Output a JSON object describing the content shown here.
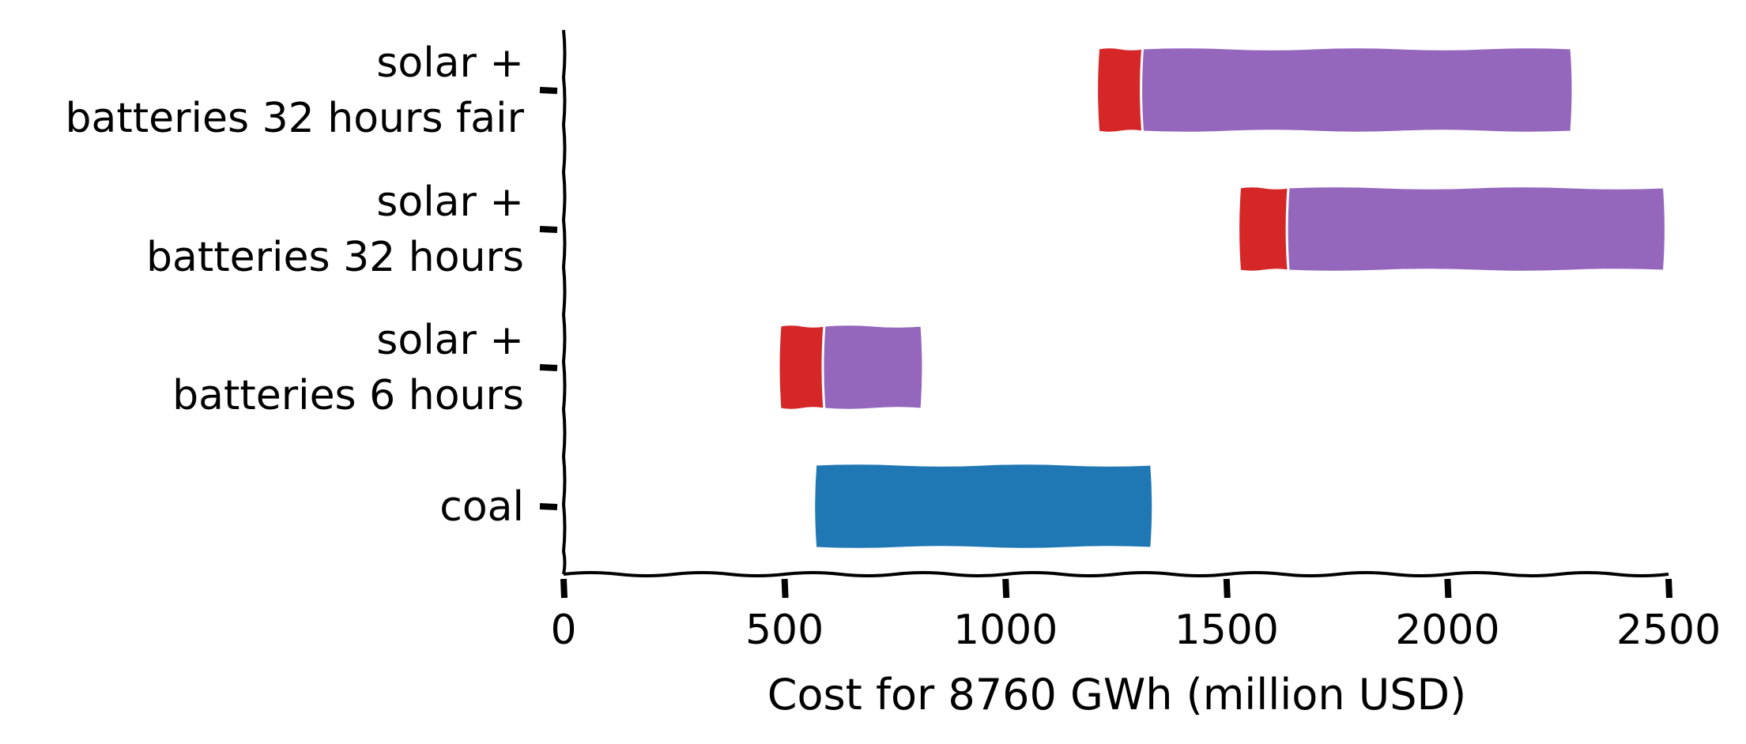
{
  "chart_data": {
    "type": "bar",
    "orientation": "horizontal",
    "stacked": "floating",
    "categories": [
      [
        "solar +",
        "batteries 32 hours fair"
      ],
      [
        "solar +",
        "batteries 32 hours"
      ],
      [
        "solar +",
        "batteries 6 hours"
      ],
      [
        "coal"
      ]
    ],
    "segments": [
      [
        {
          "start": 1210,
          "end": 1310,
          "color": "#d62728"
        },
        {
          "start": 1310,
          "end": 2280,
          "color": "#9467bd"
        }
      ],
      [
        {
          "start": 1530,
          "end": 1640,
          "color": "#d62728"
        },
        {
          "start": 1640,
          "end": 2490,
          "color": "#9467bd"
        }
      ],
      [
        {
          "start": 490,
          "end": 590,
          "color": "#d62728"
        },
        {
          "start": 590,
          "end": 810,
          "color": "#9467bd"
        }
      ],
      [
        {
          "start": 570,
          "end": 1330,
          "color": "#1f77b4"
        }
      ]
    ],
    "xlabel": "Cost for 8760 GWh (million USD)",
    "ylabel": "",
    "title": "",
    "xlim": [
      0,
      2500
    ],
    "xticks": [
      "0",
      "500",
      "1000",
      "1500",
      "2000",
      "2500"
    ],
    "grid": false,
    "legend": "none"
  }
}
